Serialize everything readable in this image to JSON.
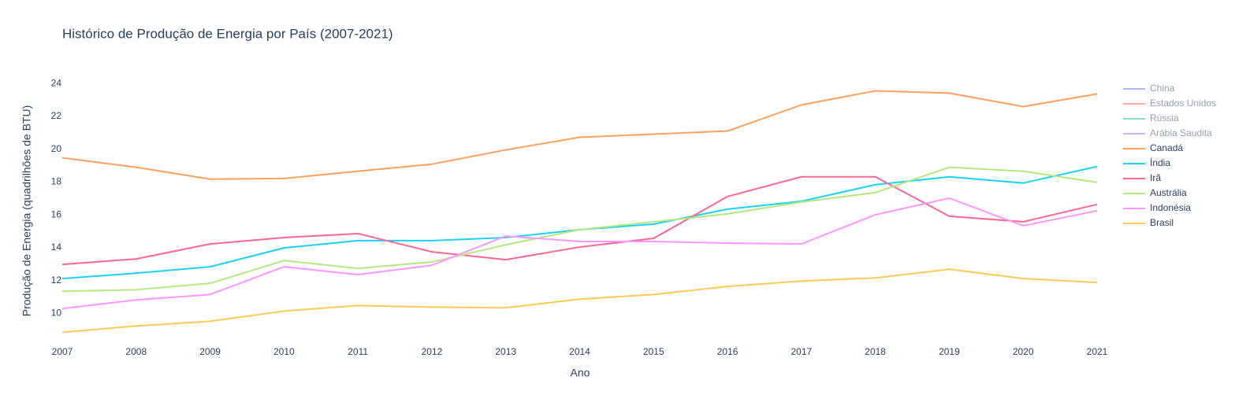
{
  "chart_data": {
    "type": "line",
    "title": "Histórico de Produção de Energia por País (2007-2021)",
    "x_label": "Ano",
    "y_label": "Produção de Energia (quadrilhões de BTU)",
    "x": [
      2007,
      2008,
      2009,
      2010,
      2011,
      2012,
      2013,
      2014,
      2015,
      2016,
      2017,
      2018,
      2019,
      2020,
      2021
    ],
    "xlim": [
      2007,
      2021
    ],
    "xticks": [
      2007,
      2008,
      2009,
      2010,
      2011,
      2012,
      2013,
      2014,
      2015,
      2016,
      2017,
      2018,
      2019,
      2020,
      2021
    ],
    "ylim": [
      8.1,
      24.3
    ],
    "yticks": [
      10,
      12,
      14,
      16,
      18,
      20,
      22,
      24
    ],
    "grid": false,
    "legend": "right",
    "series": [
      {
        "name": "China",
        "color": "#636efa",
        "visible": false,
        "values": [
          null,
          null,
          null,
          null,
          null,
          null,
          null,
          null,
          null,
          null,
          null,
          null,
          null,
          null,
          null
        ]
      },
      {
        "name": "Estados Unidos",
        "color": "#ef553b",
        "visible": false,
        "values": [
          null,
          null,
          null,
          null,
          null,
          null,
          null,
          null,
          null,
          null,
          null,
          null,
          null,
          null,
          null
        ]
      },
      {
        "name": "Rússia",
        "color": "#00cc96",
        "visible": false,
        "values": [
          null,
          null,
          null,
          null,
          null,
          null,
          null,
          null,
          null,
          null,
          null,
          null,
          null,
          null,
          null
        ]
      },
      {
        "name": "Arábia Saudita",
        "color": "#ab63fa",
        "visible": false,
        "values": [
          null,
          null,
          null,
          null,
          null,
          null,
          null,
          null,
          null,
          null,
          null,
          null,
          null,
          null,
          null
        ]
      },
      {
        "name": "Canadá",
        "color": "#ffa15a",
        "visible": true,
        "values": [
          19.48,
          18.9,
          18.18,
          18.22,
          18.66,
          19.09,
          19.96,
          20.73,
          20.92,
          21.11,
          22.7,
          23.56,
          23.42,
          22.6,
          23.37
        ]
      },
      {
        "name": "Índia",
        "color": "#19d3f3",
        "visible": true,
        "values": [
          12.12,
          12.45,
          12.84,
          13.99,
          14.43,
          14.43,
          14.62,
          15.1,
          15.44,
          16.35,
          16.83,
          17.84,
          18.32,
          17.94,
          18.95
        ]
      },
      {
        "name": "Irã",
        "color": "#ff6692",
        "visible": true,
        "values": [
          12.98,
          13.32,
          14.23,
          14.62,
          14.86,
          13.75,
          13.27,
          14.04,
          14.57,
          17.12,
          18.32,
          18.32,
          15.92,
          15.58,
          16.64
        ]
      },
      {
        "name": "Austrália",
        "color": "#b6e880",
        "visible": true,
        "values": [
          11.35,
          11.44,
          11.83,
          13.22,
          12.74,
          13.13,
          14.18,
          15.1,
          15.58,
          16.06,
          16.78,
          17.36,
          18.9,
          18.66,
          17.98
        ]
      },
      {
        "name": "Indonésia",
        "color": "#ff97ff",
        "visible": true,
        "values": [
          10.29,
          10.82,
          11.15,
          12.84,
          12.36,
          12.93,
          14.71,
          14.38,
          14.38,
          14.28,
          14.23,
          16.01,
          17.02,
          15.34,
          16.25
        ]
      },
      {
        "name": "Brasil",
        "color": "#fecb52",
        "visible": true,
        "values": [
          8.85,
          9.23,
          9.52,
          10.14,
          10.48,
          10.38,
          10.34,
          10.87,
          11.15,
          11.64,
          11.97,
          12.16,
          12.69,
          12.12,
          11.88
        ]
      }
    ]
  }
}
